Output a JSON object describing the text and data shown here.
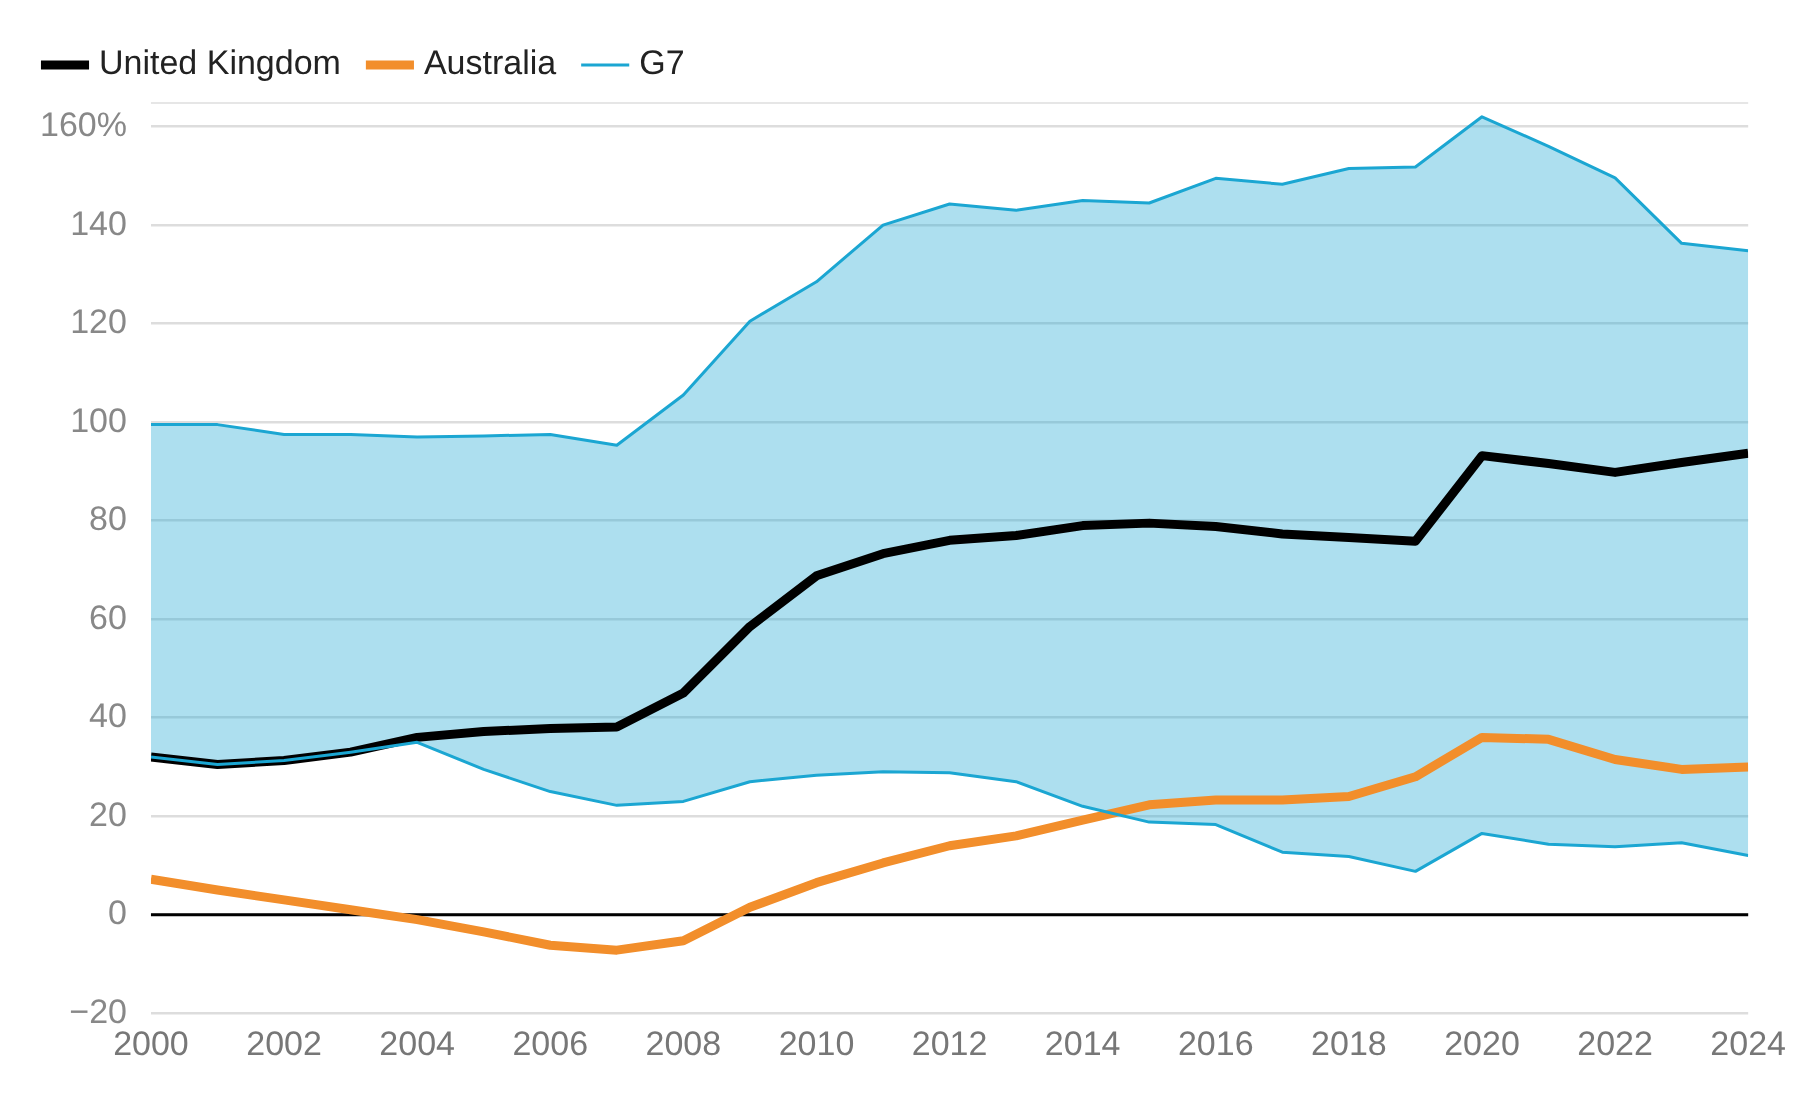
{
  "chart_data": {
    "type": "line",
    "x": [
      2000,
      2001,
      2002,
      2003,
      2004,
      2005,
      2006,
      2007,
      2008,
      2009,
      2010,
      2011,
      2012,
      2013,
      2014,
      2015,
      2016,
      2017,
      2018,
      2019,
      2020,
      2021,
      2022,
      2023,
      2024
    ],
    "series": [
      {
        "name": "United Kingdom",
        "color": "#000000",
        "values": [
          32,
          30.5,
          31.3,
          33,
          36,
          37.2,
          37.8,
          38.1,
          45,
          58.5,
          68.8,
          73.3,
          76,
          77,
          79,
          79.5,
          78.8,
          77.3,
          76.6,
          75.8,
          93.2,
          91.6,
          89.8,
          91.8,
          93.7
        ]
      },
      {
        "name": "Australia",
        "color": "#f28e2b",
        "values": [
          7.2,
          5,
          3,
          1,
          -1,
          -3.5,
          -6.2,
          -7.2,
          -5.3,
          1.5,
          6.5,
          10.5,
          14,
          16,
          19.2,
          22.3,
          23.3,
          23.3,
          24,
          28,
          36,
          35.6,
          31.5,
          29.5,
          30
        ]
      },
      {
        "name": "G7",
        "type": "area",
        "color": "#1ba6d2",
        "values": [
          99.5,
          99.5,
          97.5,
          97.5,
          97,
          97.2,
          97.5,
          95.3,
          105.5,
          120.5,
          128.5,
          140,
          144.3,
          143,
          145,
          144.5,
          149.5,
          148.3,
          151.5,
          151.8,
          162,
          156,
          149.6,
          136.3,
          134.8
        ]
      },
      {
        "type": "line",
        "color": "#1ba6d2",
        "values": [
          32,
          30.5,
          31.3,
          33,
          35,
          29.5,
          25,
          22.2,
          23,
          27,
          28.3,
          29,
          28.8,
          27,
          22,
          18.8,
          18.3,
          12.7,
          11.8,
          8.8,
          16.5,
          14.3,
          13.8,
          14.6,
          12
        ]
      }
    ],
    "xlim": [
      2000,
      2024
    ],
    "xticks": [
      2000,
      2002,
      2004,
      2006,
      2008,
      2010,
      2012,
      2014,
      2016,
      2018,
      2020,
      2022,
      2024
    ],
    "ylim": [
      -20,
      165
    ],
    "yticks": [
      {
        "value": -20,
        "label": "−20"
      },
      0,
      20,
      40,
      60,
      80,
      100,
      120,
      140,
      {
        "value": 160,
        "label": "160%"
      }
    ],
    "ref_lines": [
      {
        "axis": "y",
        "value": 0,
        "color": "#000000"
      }
    ],
    "grid": "y",
    "legend": "top left"
  }
}
